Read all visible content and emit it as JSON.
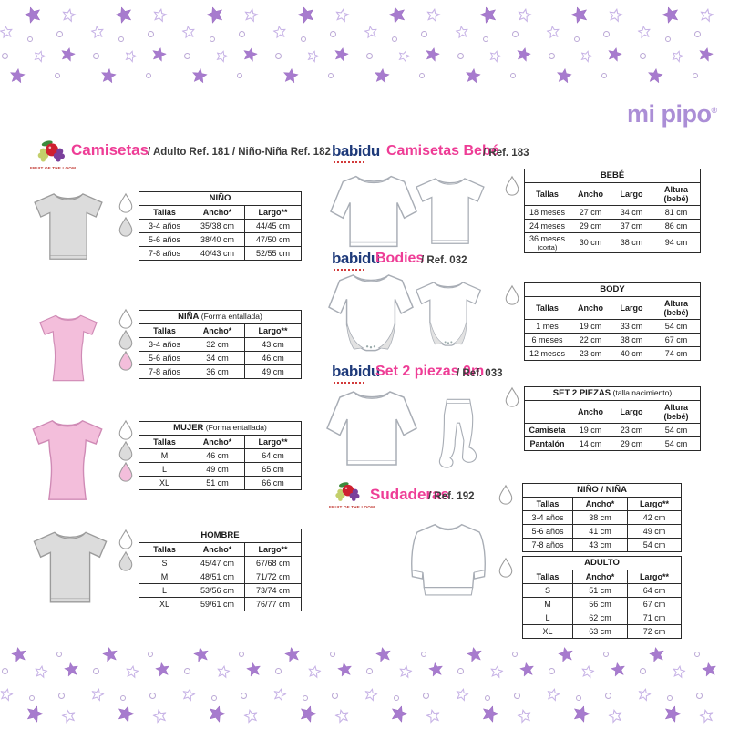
{
  "logo": {
    "text": "mi pipo",
    "registered": "®"
  },
  "sections": {
    "camisetas": {
      "brand": "FRUIT OF THE LOOM.",
      "title": "Camisetas",
      "subtitle": "/ Adulto Ref. 181 / Niño-Niña Ref. 182"
    },
    "camisetas_bebe": {
      "brand": "babidu",
      "title": "Camisetas Bebé",
      "subtitle": "/ Ref. 183"
    },
    "bodies": {
      "brand": "babidu",
      "title": "Bodies",
      "subtitle": "/ Ref. 032"
    },
    "set2": {
      "brand": "babidu",
      "title": "Set 2 piezas 0m",
      "subtitle": "/ Ref. 033"
    },
    "sudaderas": {
      "brand": "FRUIT OF THE LOOM.",
      "title": "Sudaderas",
      "subtitle": "/ Ref. 192"
    }
  },
  "tables": {
    "nino": {
      "title": "NIÑO",
      "note": "",
      "columns": [
        "Tallas",
        "Ancho*",
        "Largo**"
      ],
      "rows": [
        [
          "3-4 años",
          "35/38 cm",
          "44/45 cm"
        ],
        [
          "5-6 años",
          "38/40 cm",
          "47/50 cm"
        ],
        [
          "7-8 años",
          "40/43 cm",
          "52/55 cm"
        ]
      ]
    },
    "nina": {
      "title": "NIÑA",
      "note": "(Forma entallada)",
      "columns": [
        "Tallas",
        "Ancho*",
        "Largo**"
      ],
      "rows": [
        [
          "3-4 años",
          "32 cm",
          "43 cm"
        ],
        [
          "5-6 años",
          "34 cm",
          "46 cm"
        ],
        [
          "7-8 años",
          "36 cm",
          "49 cm"
        ]
      ]
    },
    "mujer": {
      "title": "MUJER",
      "note": "(Forma entallada)",
      "columns": [
        "Tallas",
        "Ancho*",
        "Largo**"
      ],
      "rows": [
        [
          "M",
          "46 cm",
          "64 cm"
        ],
        [
          "L",
          "49 cm",
          "65 cm"
        ],
        [
          "XL",
          "51 cm",
          "66 cm"
        ]
      ]
    },
    "hombre": {
      "title": "HOMBRE",
      "note": "",
      "columns": [
        "Tallas",
        "Ancho*",
        "Largo**"
      ],
      "rows": [
        [
          "S",
          "45/47 cm",
          "67/68 cm"
        ],
        [
          "M",
          "48/51 cm",
          "71/72 cm"
        ],
        [
          "L",
          "53/56 cm",
          "73/74 cm"
        ],
        [
          "XL",
          "59/61 cm",
          "76/77 cm"
        ]
      ]
    },
    "bebe": {
      "title": "BEBÉ",
      "note": "",
      "columns": [
        "Tallas",
        "Ancho",
        "Largo",
        "Altura (bebé)"
      ],
      "rows": [
        [
          "18 meses",
          "27 cm",
          "34 cm",
          "81 cm"
        ],
        [
          "24 meses",
          "29 cm",
          "37 cm",
          "86 cm"
        ],
        [
          "36 meses\n(corta)",
          "30 cm",
          "38 cm",
          "94 cm"
        ]
      ]
    },
    "body": {
      "title": "BODY",
      "note": "",
      "columns": [
        "Tallas",
        "Ancho",
        "Largo",
        "Altura (bebé)"
      ],
      "rows": [
        [
          "1 mes",
          "19 cm",
          "33 cm",
          "54 cm"
        ],
        [
          "6 meses",
          "22 cm",
          "38 cm",
          "67 cm"
        ],
        [
          "12 meses",
          "23 cm",
          "40 cm",
          "74 cm"
        ]
      ]
    },
    "set": {
      "title": "SET 2 PIEZAS",
      "note": "(talla nacimiento)",
      "columns": [
        "",
        "Ancho",
        "Largo",
        "Altura (bebé)"
      ],
      "bold_first_col": true,
      "rows": [
        [
          "Camiseta",
          "19 cm",
          "23 cm",
          "54 cm"
        ],
        [
          "Pantalón",
          "14 cm",
          "29 cm",
          "54 cm"
        ]
      ]
    },
    "sud_nino": {
      "title": "NIÑO / NIÑA",
      "note": "",
      "columns": [
        "Tallas",
        "Ancho*",
        "Largo**"
      ],
      "rows": [
        [
          "3-4 años",
          "38 cm",
          "42 cm"
        ],
        [
          "5-6 años",
          "41 cm",
          "49 cm"
        ],
        [
          "7-8 años",
          "43 cm",
          "54 cm"
        ]
      ]
    },
    "sud_adulto": {
      "title": "ADULTO",
      "note": "",
      "columns": [
        "Tallas",
        "Ancho*",
        "Largo**"
      ],
      "rows": [
        [
          "S",
          "51 cm",
          "64 cm"
        ],
        [
          "M",
          "56 cm",
          "67 cm"
        ],
        [
          "L",
          "62 cm",
          "71 cm"
        ],
        [
          "XL",
          "63 cm",
          "72 cm"
        ]
      ]
    }
  },
  "colors": {
    "accent_pink": "#ee3d96",
    "babidu_navy": "#1e3a7a",
    "mipipo_purple": "#ab8ed6",
    "star_purple": "#a77bce",
    "drop_gray": "#dcdcdc",
    "drop_pink": "#f3bedb"
  }
}
